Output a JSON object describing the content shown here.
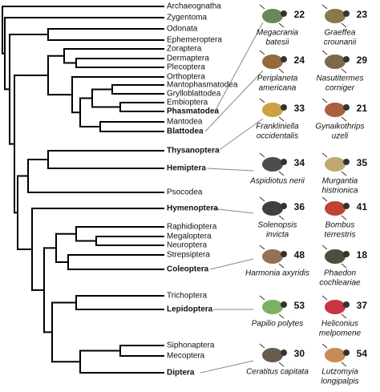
{
  "taxa": [
    {
      "label": "Archaeognatha",
      "bold": false
    },
    {
      "label": "Zygentoma",
      "bold": false
    },
    {
      "label": "Odonata",
      "bold": false
    },
    {
      "label": "Ephemeroptera",
      "bold": false
    },
    {
      "label": "Zoraptera",
      "bold": false
    },
    {
      "label": "Dermaptera",
      "bold": false
    },
    {
      "label": "Plecoptera",
      "bold": false
    },
    {
      "label": "Orthoptera",
      "bold": false
    },
    {
      "label": "Mantophasmatodea",
      "bold": false
    },
    {
      "label": "Grylloblattodea",
      "bold": false
    },
    {
      "label": "Embioptera",
      "bold": false
    },
    {
      "label": "Phasmatodea",
      "bold": true
    },
    {
      "label": "Mantodea",
      "bold": false
    },
    {
      "label": "Blattodea",
      "bold": true
    },
    {
      "label": "Thysanoptera",
      "bold": true
    },
    {
      "label": "Hemiptera",
      "bold": true
    },
    {
      "label": "Psocodea",
      "bold": false
    },
    {
      "label": "Hymenoptera",
      "bold": true
    },
    {
      "label": "Raphidioptera",
      "bold": false
    },
    {
      "label": "Megaloptera",
      "bold": false
    },
    {
      "label": "Neuroptera",
      "bold": false
    },
    {
      "label": "Strepsiptera",
      "bold": false
    },
    {
      "label": "Coleoptera",
      "bold": true
    },
    {
      "label": "Trichoptera",
      "bold": false
    },
    {
      "label": "Lepidoptera",
      "bold": true
    },
    {
      "label": "Siphonaptera",
      "bold": false
    },
    {
      "label": "Mecoptera",
      "bold": false
    },
    {
      "label": "Diptera",
      "bold": true
    }
  ],
  "species": [
    [
      {
        "name": [
          "Megacrania",
          "batesii"
        ],
        "number": 22
      },
      {
        "name": [
          "Graeffea",
          "crounanii"
        ],
        "number": 23
      }
    ],
    [
      {
        "name": [
          "Periplaneta",
          "americana"
        ],
        "number": 24
      },
      {
        "name": [
          "Nasutitermes",
          "corniger"
        ],
        "number": 29
      }
    ],
    [
      {
        "name": [
          "Frankliniella",
          "occidentalis"
        ],
        "number": 33
      },
      {
        "name": [
          "Gynaikothrips",
          "uzeli"
        ],
        "number": 21
      }
    ],
    [
      {
        "name": [
          "Aspidiotus nerii"
        ],
        "number": 34
      },
      {
        "name": [
          "Murgantia",
          "histrionica"
        ],
        "number": 35
      }
    ],
    [
      {
        "name": [
          "Solenopsis",
          "invicta"
        ],
        "number": 36
      },
      {
        "name": [
          "Bombus",
          "terrestris"
        ],
        "number": 41
      }
    ],
    [
      {
        "name": [
          "Harmonia axyridis"
        ],
        "number": 48
      },
      {
        "name": [
          "Phaedon",
          "cochleariae"
        ],
        "number": 18
      }
    ],
    [
      {
        "name": [
          "Papilio polytes"
        ],
        "number": 53
      },
      {
        "name": [
          "Heliconius",
          "melpomene"
        ],
        "number": 37
      }
    ],
    [
      {
        "name": [
          "Ceratitus capitata"
        ],
        "number": 30
      },
      {
        "name": [
          "Lutzomyia",
          "longipalpis"
        ],
        "number": 54
      }
    ]
  ]
}
